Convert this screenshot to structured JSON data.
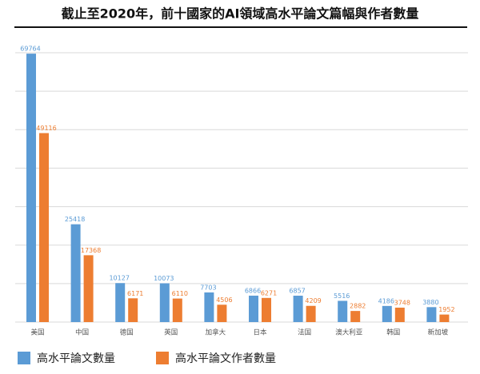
{
  "chart_data": {
    "type": "bar",
    "title": "截止至2020年，前十國家的AI領域高水平論文篇幅與作者數量",
    "categories": [
      "美国",
      "中国",
      "德国",
      "英国",
      "加拿大",
      "日本",
      "法国",
      "澳大利亚",
      "韩国",
      "新加坡"
    ],
    "series": [
      {
        "name": "高水平論文數量",
        "color": "#5b9bd5",
        "values": [
          69764,
          25418,
          10127,
          10073,
          7703,
          6866,
          6857,
          5516,
          4186,
          3880
        ]
      },
      {
        "name": "高水平論文作者數量",
        "color": "#ed7d31",
        "values": [
          49116,
          17368,
          6171,
          6110,
          4506,
          6271,
          4209,
          2882,
          3748,
          1952
        ]
      }
    ],
    "ylim": [
      0,
      70000
    ],
    "yticks": [
      0,
      10000,
      20000,
      30000,
      40000,
      50000,
      60000,
      70000
    ],
    "grid": true,
    "legend": "bottom"
  }
}
